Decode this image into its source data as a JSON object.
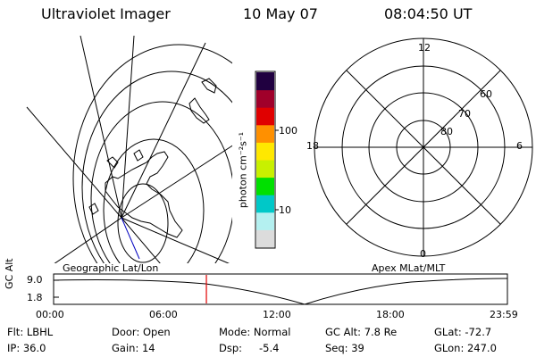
{
  "header": {
    "instrument": "Ultraviolet Imager",
    "date": "10 May 07",
    "time": "08:04:50 UT"
  },
  "colorbar": {
    "unit_label": "photon cm⁻²s⁻¹",
    "tick_labels": [
      "100",
      "10"
    ],
    "colors": [
      "#dcdcdc",
      "#b4f0f0",
      "#00c8c8",
      "#00e000",
      "#c8f000",
      "#ffe800",
      "#ff9000",
      "#e00000",
      "#a0002a",
      "#200040"
    ]
  },
  "left_panel": {
    "caption": "Geographic Lat/Lon"
  },
  "right_panel": {
    "caption": "Apex MLat/MLT",
    "mlt_labels": {
      "top": "12",
      "left": "18",
      "right": "6",
      "bottom": "0"
    },
    "mlat_labels": [
      "60",
      "70",
      "80"
    ]
  },
  "timeline": {
    "y_axis_label": "GC Alt",
    "y_ticks": [
      "9.0",
      "1.8"
    ],
    "x_ticks": [
      "00:00",
      "06:00",
      "12:00",
      "18:00",
      "23:59"
    ],
    "current_marker_hours": 8.08,
    "marker_color": "#e00000"
  },
  "footer": {
    "filter": "Flt: LBHL",
    "ip": "IP: 36.0",
    "door": "Door: Open",
    "gain": "Gain: 14",
    "mode": "Mode: Normal",
    "dsp_label": "Dsp:",
    "dsp_value": "-5.4",
    "gc_alt": "GC Alt: 7.8 Re",
    "seq": "Seq: 39",
    "glat": "GLat: -72.7",
    "glon": "GLon: 247.0"
  }
}
